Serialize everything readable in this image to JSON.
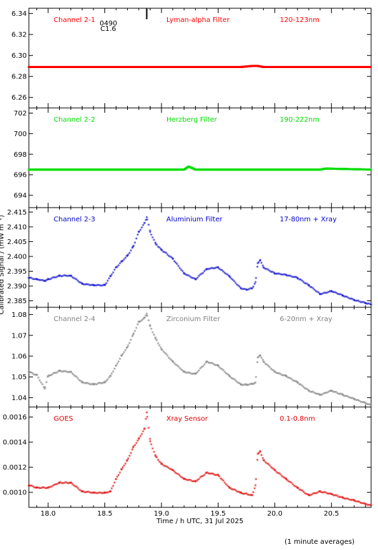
{
  "chart_data": {
    "type": "scatter",
    "xlabel": "Time / h UTC, 31 Jul 2025",
    "ylabel": "Calibrated Signal / (mW m⁻²)",
    "footnote": "(1 minute averages)",
    "xlim": [
      17.83,
      20.85
    ],
    "xticks": [
      "18.0",
      "18.5",
      "19.0",
      "19.5",
      "20.0",
      "20.5"
    ],
    "xtick_values": [
      18.0,
      18.5,
      19.0,
      19.5,
      20.0,
      20.5
    ],
    "flare_marker": {
      "x": 18.87,
      "labels": [
        "0490",
        "C1.6"
      ]
    },
    "panels": [
      {
        "channel": "Channel 2-1",
        "filter": "Lyman-alpha Filter",
        "band": "120-123nm",
        "color": "#ff0000",
        "ylim": [
          6.25,
          6.345
        ],
        "yticks": [
          "6.26",
          "6.28",
          "6.30",
          "6.32",
          "6.34"
        ],
        "ytick_values": [
          6.26,
          6.28,
          6.3,
          6.32,
          6.34
        ],
        "x": [
          17.83,
          18.2,
          18.6,
          19.0,
          19.4,
          19.7,
          19.8,
          19.85,
          19.9,
          20.2,
          20.5,
          20.85
        ],
        "y": [
          6.289,
          6.289,
          6.289,
          6.289,
          6.289,
          6.289,
          6.29,
          6.29,
          6.289,
          6.289,
          6.289,
          6.289
        ]
      },
      {
        "channel": "Channel 2-2",
        "filter": "Herzberg Filter",
        "band": "190-222nm",
        "color": "#00dd00",
        "ylim": [
          692.8,
          702.5
        ],
        "yticks": [
          "694",
          "696",
          "698",
          "700",
          "702"
        ],
        "ytick_values": [
          694,
          696,
          698,
          700,
          702
        ],
        "x": [
          17.83,
          18.2,
          18.6,
          19.0,
          19.2,
          19.24,
          19.3,
          19.6,
          20.0,
          20.4,
          20.45,
          20.85
        ],
        "y": [
          696.5,
          696.5,
          696.5,
          696.5,
          696.5,
          696.8,
          696.5,
          696.5,
          696.5,
          696.5,
          696.6,
          696.5
        ]
      },
      {
        "channel": "Channel 2-3",
        "filter": "Aluminium Filter",
        "band": "17-80nm + Xray",
        "color": "#0000cc",
        "ylim": [
          2.3828,
          2.4165
        ],
        "yticks": [
          "2.385",
          "2.390",
          "2.395",
          "2.400",
          "2.405",
          "2.410",
          "2.415"
        ],
        "ytick_values": [
          2.385,
          2.39,
          2.395,
          2.4,
          2.405,
          2.41,
          2.415
        ],
        "x": [
          17.83,
          17.9,
          17.97,
          18.0,
          18.1,
          18.2,
          18.3,
          18.4,
          18.5,
          18.55,
          18.6,
          18.65,
          18.7,
          18.75,
          18.8,
          18.85,
          18.87,
          18.9,
          18.95,
          19.0,
          19.1,
          19.2,
          19.3,
          19.4,
          19.5,
          19.6,
          19.7,
          19.75,
          19.8,
          19.83,
          19.85,
          19.87,
          19.9,
          20.0,
          20.1,
          20.2,
          20.3,
          20.4,
          20.5,
          20.6,
          20.7,
          20.8,
          20.85
        ],
        "y": [
          2.3925,
          2.392,
          2.3915,
          2.392,
          2.3932,
          2.3932,
          2.3905,
          2.39,
          2.39,
          2.393,
          2.396,
          2.398,
          2.4,
          2.403,
          2.408,
          2.411,
          2.413,
          2.408,
          2.404,
          2.402,
          2.399,
          2.394,
          2.392,
          2.3955,
          2.396,
          2.393,
          2.389,
          2.3885,
          2.389,
          2.391,
          2.3975,
          2.3985,
          2.396,
          2.394,
          2.3935,
          2.3925,
          2.39,
          2.387,
          2.388,
          2.3865,
          2.385,
          2.384,
          2.3835
        ]
      },
      {
        "channel": "Channel 2-4",
        "filter": "Zirconium Filter",
        "band": "6-20nm + Xray",
        "color": "#808080",
        "ylim": [
          1.0355,
          1.0835
        ],
        "yticks": [
          "1.04",
          "1.05",
          "1.06",
          "1.07",
          "1.08"
        ],
        "ytick_values": [
          1.04,
          1.05,
          1.06,
          1.07,
          1.08
        ],
        "x": [
          17.83,
          17.9,
          17.97,
          18.0,
          18.1,
          18.2,
          18.3,
          18.4,
          18.5,
          18.55,
          18.6,
          18.65,
          18.7,
          18.75,
          18.8,
          18.85,
          18.87,
          18.9,
          18.95,
          19.0,
          19.1,
          19.2,
          19.3,
          19.4,
          19.5,
          19.6,
          19.7,
          19.75,
          19.8,
          19.83,
          19.85,
          19.87,
          19.9,
          20.0,
          20.1,
          20.2,
          20.3,
          20.4,
          20.5,
          20.6,
          20.7,
          20.8,
          20.85
        ],
        "y": [
          1.052,
          1.0505,
          1.044,
          1.05,
          1.0525,
          1.052,
          1.047,
          1.046,
          1.047,
          1.05,
          1.055,
          1.06,
          1.064,
          1.07,
          1.076,
          1.078,
          1.08,
          1.074,
          1.068,
          1.063,
          1.057,
          1.052,
          1.051,
          1.057,
          1.055,
          1.05,
          1.046,
          1.0458,
          1.0462,
          1.047,
          1.059,
          1.06,
          1.057,
          1.052,
          1.05,
          1.047,
          1.043,
          1.041,
          1.043,
          1.041,
          1.039,
          1.037,
          1.036
        ]
      },
      {
        "channel": "GOES",
        "filter": "Xray Sensor",
        "band": "0.1-0.8nm",
        "color": "#dd0000",
        "ylim": [
          0.00088,
          0.00168
        ],
        "yticks": [
          "0.0010",
          "0.0012",
          "0.0014",
          "0.0016"
        ],
        "ytick_values": [
          0.001,
          0.0012,
          0.0014,
          0.0016
        ],
        "x": [
          17.83,
          17.9,
          18.0,
          18.1,
          18.2,
          18.3,
          18.4,
          18.5,
          18.55,
          18.6,
          18.65,
          18.7,
          18.75,
          18.8,
          18.85,
          18.87,
          18.9,
          18.95,
          19.0,
          19.1,
          19.2,
          19.3,
          19.4,
          19.5,
          19.6,
          19.7,
          19.8,
          19.83,
          19.85,
          19.87,
          19.9,
          20.0,
          20.1,
          20.2,
          20.3,
          20.4,
          20.5,
          20.6,
          20.7,
          20.8,
          20.85
        ],
        "y": [
          0.00105,
          0.00103,
          0.00103,
          0.00107,
          0.00107,
          0.001,
          0.00099,
          0.00099,
          0.001,
          0.0011,
          0.00118,
          0.00125,
          0.00135,
          0.00142,
          0.0015,
          0.00163,
          0.0014,
          0.00128,
          0.00122,
          0.00117,
          0.0011,
          0.00108,
          0.00115,
          0.00113,
          0.00103,
          0.00099,
          0.00097,
          0.00105,
          0.0013,
          0.00132,
          0.00125,
          0.00117,
          0.0011,
          0.00103,
          0.00097,
          0.001,
          0.00098,
          0.00095,
          0.00093,
          0.0009,
          0.00089
        ]
      }
    ]
  }
}
